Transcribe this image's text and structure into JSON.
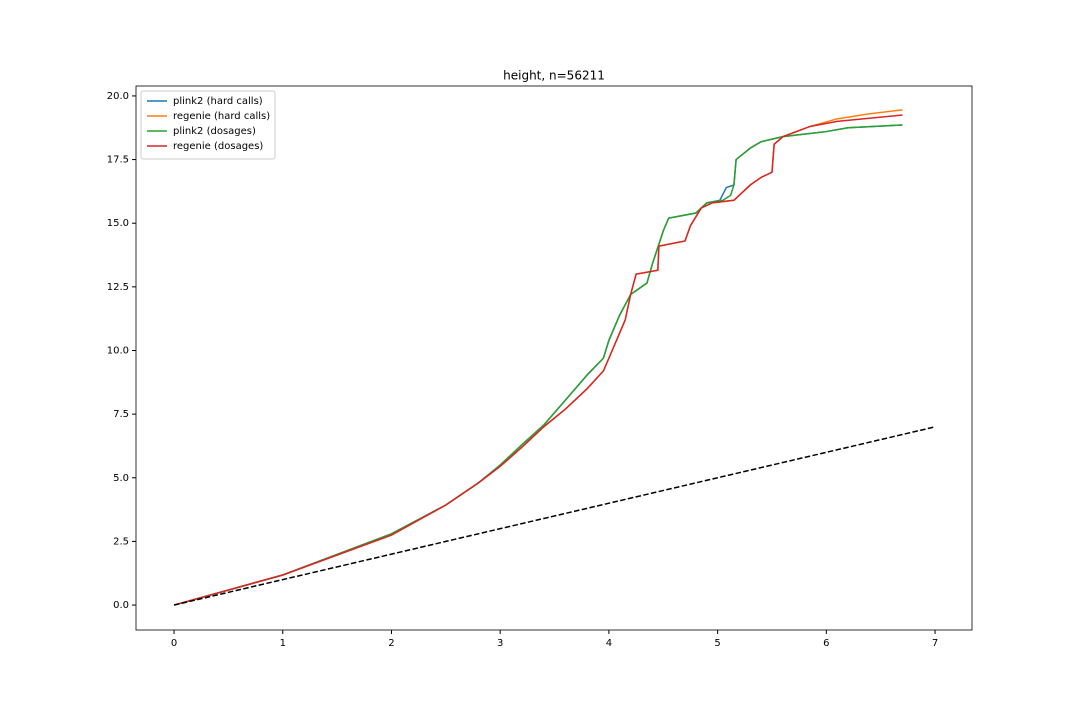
{
  "chart_data": {
    "type": "line",
    "title": "height, n=56211",
    "xlim": [
      -0.35,
      7.34
    ],
    "xticks": [
      0,
      1,
      2,
      3,
      4,
      5,
      6,
      7
    ],
    "ylim": [
      -0.98,
      20.39
    ],
    "yticks": [
      {
        "value": 0,
        "label": "0.0"
      },
      2.5,
      {
        "value": 5,
        "label": "5.0"
      },
      7.5,
      {
        "value": 10,
        "label": "10.0"
      },
      12.5,
      {
        "value": 15,
        "label": "15.0"
      },
      17.5,
      {
        "value": 20,
        "label": "20.0"
      }
    ],
    "legend": "upper left",
    "reference_line": {
      "x": [
        0,
        7
      ],
      "values": [
        0,
        7
      ],
      "color": "#000000",
      "dashed": true
    },
    "series": [
      {
        "name": "plink2 (hard calls)",
        "color": "#1f77b4",
        "x": [
          0,
          1,
          2,
          2.5,
          2.8,
          3,
          3.2,
          3.4,
          3.6,
          3.8,
          3.95,
          4.0,
          4.1,
          4.2,
          4.35,
          4.4,
          4.5,
          4.55,
          4.8,
          4.9,
          5.02,
          5.08,
          5.15,
          5.17,
          5.3,
          5.4,
          5.6,
          6.0,
          6.2,
          6.7
        ],
        "values": [
          0,
          1.18,
          2.8,
          3.93,
          4.8,
          5.5,
          6.3,
          7.07,
          8.05,
          9.04,
          9.7,
          10.4,
          11.4,
          12.2,
          12.65,
          13.4,
          14.7,
          15.2,
          15.4,
          15.8,
          15.9,
          16.4,
          16.5,
          17.5,
          17.95,
          18.2,
          18.4,
          18.6,
          18.75,
          18.86
        ]
      },
      {
        "name": "regenie (hard calls)",
        "color": "#ff7f0e",
        "x": [
          0,
          1,
          2,
          2.5,
          2.8,
          3,
          3.2,
          3.4,
          3.6,
          3.8,
          3.95,
          4.05,
          4.15,
          4.2,
          4.25,
          4.45,
          4.46,
          4.7,
          4.75,
          4.85,
          4.95,
          5.15,
          5.3,
          5.4,
          5.5,
          5.52,
          5.6,
          5.85,
          6.1,
          6.4,
          6.7
        ],
        "values": [
          0,
          1.18,
          2.75,
          3.93,
          4.8,
          5.45,
          6.2,
          7.0,
          7.7,
          8.5,
          9.2,
          10.2,
          11.2,
          12.2,
          13.0,
          13.15,
          14.1,
          14.3,
          14.9,
          15.6,
          15.8,
          15.9,
          16.5,
          16.8,
          17.0,
          18.1,
          18.4,
          18.8,
          19.1,
          19.3,
          19.45
        ]
      },
      {
        "name": "plink2 (dosages)",
        "color": "#2ca02c",
        "x": [
          0,
          1,
          2,
          2.5,
          2.8,
          3,
          3.2,
          3.4,
          3.6,
          3.8,
          3.95,
          4.0,
          4.1,
          4.2,
          4.35,
          4.4,
          4.5,
          4.55,
          4.8,
          4.9,
          5.05,
          5.12,
          5.15,
          5.17,
          5.3,
          5.4,
          5.6,
          6.0,
          6.2,
          6.7
        ],
        "values": [
          0,
          1.18,
          2.8,
          3.93,
          4.8,
          5.5,
          6.3,
          7.07,
          8.05,
          9.04,
          9.7,
          10.4,
          11.4,
          12.2,
          12.65,
          13.4,
          14.7,
          15.2,
          15.4,
          15.8,
          15.9,
          16.1,
          16.5,
          17.5,
          17.95,
          18.2,
          18.4,
          18.6,
          18.75,
          18.86
        ]
      },
      {
        "name": "regenie (dosages)",
        "color": "#d62728",
        "x": [
          0,
          1,
          2,
          2.5,
          2.8,
          3,
          3.2,
          3.4,
          3.6,
          3.8,
          3.95,
          4.05,
          4.15,
          4.2,
          4.25,
          4.45,
          4.46,
          4.7,
          4.75,
          4.85,
          4.95,
          5.15,
          5.3,
          5.4,
          5.5,
          5.52,
          5.6,
          5.85,
          6.1,
          6.7
        ],
        "values": [
          0,
          1.18,
          2.75,
          3.93,
          4.8,
          5.45,
          6.2,
          7.0,
          7.7,
          8.5,
          9.2,
          10.2,
          11.2,
          12.2,
          13.0,
          13.15,
          14.1,
          14.3,
          14.9,
          15.6,
          15.8,
          15.9,
          16.5,
          16.8,
          17.0,
          18.1,
          18.4,
          18.8,
          19.0,
          19.25
        ]
      }
    ]
  }
}
